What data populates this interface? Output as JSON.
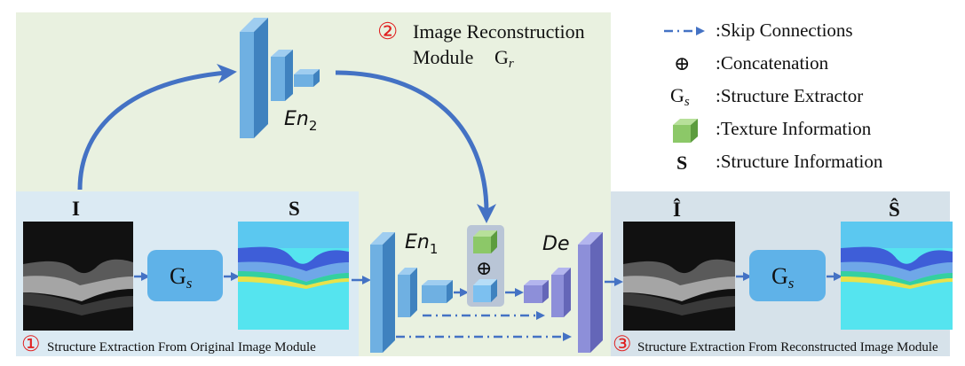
{
  "modules": {
    "reconstruction": {
      "number": "②",
      "title_line1": "Image Reconstruction",
      "title_line2": "Module",
      "symbol": "G",
      "symbol_sub": "r"
    },
    "extraction_original": {
      "number": "①",
      "caption": "Structure Extraction From Original Image Module"
    },
    "extraction_reconstructed": {
      "number": "③",
      "caption": "Structure Extraction From Reconstructed Image Module"
    }
  },
  "legend": {
    "skip": ":Skip Connections",
    "concat_symbol": "⊕",
    "concat": ":Concatenation",
    "extractor_symbol": "G",
    "extractor_sub": "s",
    "extractor": ":Structure Extractor",
    "texture": ":Texture Information",
    "structure_symbol": "S",
    "structure": ":Structure Information"
  },
  "labels": {
    "input": "I",
    "structure": "S",
    "recon": "Î",
    "recon_structure": "Ŝ",
    "gs": "G",
    "gs_sub": "s",
    "en1": "En",
    "en1_sub": "1",
    "en2": "En",
    "en2_sub": "2",
    "de": "De",
    "concat": "⊕"
  },
  "colors": {
    "green_bg": "#e9f1e0",
    "blue_bg": "#dbeaf3",
    "gray_bg": "#d6e2ea",
    "arrow": "#4472c4",
    "block": "#6fb0e2",
    "block_dark": "#4e8fc4",
    "purple": "#8d8fd9",
    "texture": "#8cc868",
    "gs_box": "#5fb2e8",
    "number_red": "#e02020"
  }
}
